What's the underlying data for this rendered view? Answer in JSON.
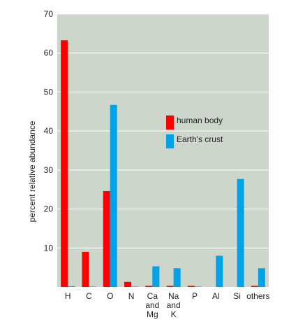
{
  "chart_data": {
    "type": "bar",
    "ylabel": "percent relative abundance",
    "xlabel": "",
    "ylim": [
      0,
      70
    ],
    "yticks": [
      10,
      20,
      30,
      40,
      50,
      60,
      70
    ],
    "grid": true,
    "legend_position": "middle-right",
    "categories": [
      {
        "id": "H",
        "lines": [
          "H"
        ]
      },
      {
        "id": "C",
        "lines": [
          "C"
        ]
      },
      {
        "id": "O",
        "lines": [
          "O"
        ]
      },
      {
        "id": "N",
        "lines": [
          "N"
        ]
      },
      {
        "id": "Ca and Mg",
        "lines": [
          "Ca",
          "and",
          "Mg"
        ]
      },
      {
        "id": "Na and K",
        "lines": [
          "Na",
          "and",
          "K"
        ]
      },
      {
        "id": "P",
        "lines": [
          "P"
        ]
      },
      {
        "id": "Al",
        "lines": [
          "Al"
        ]
      },
      {
        "id": "Si",
        "lines": [
          "Si"
        ]
      },
      {
        "id": "others",
        "lines": [
          "others"
        ]
      }
    ],
    "series": [
      {
        "name": "human body",
        "color": "#ff0000",
        "values": [
          63.3,
          9.0,
          24.6,
          1.3,
          0.3,
          0.3,
          0.3,
          0.0,
          0.0,
          0.3
        ]
      },
      {
        "name": "Earth's crust",
        "color": "#00a2e8",
        "values": [
          0.2,
          0.1,
          46.7,
          0.1,
          5.3,
          4.8,
          0.1,
          8.0,
          27.7,
          4.8
        ]
      }
    ]
  },
  "colors": {
    "plot_background": "#ccd6cb",
    "gridline": "#ffffff"
  }
}
